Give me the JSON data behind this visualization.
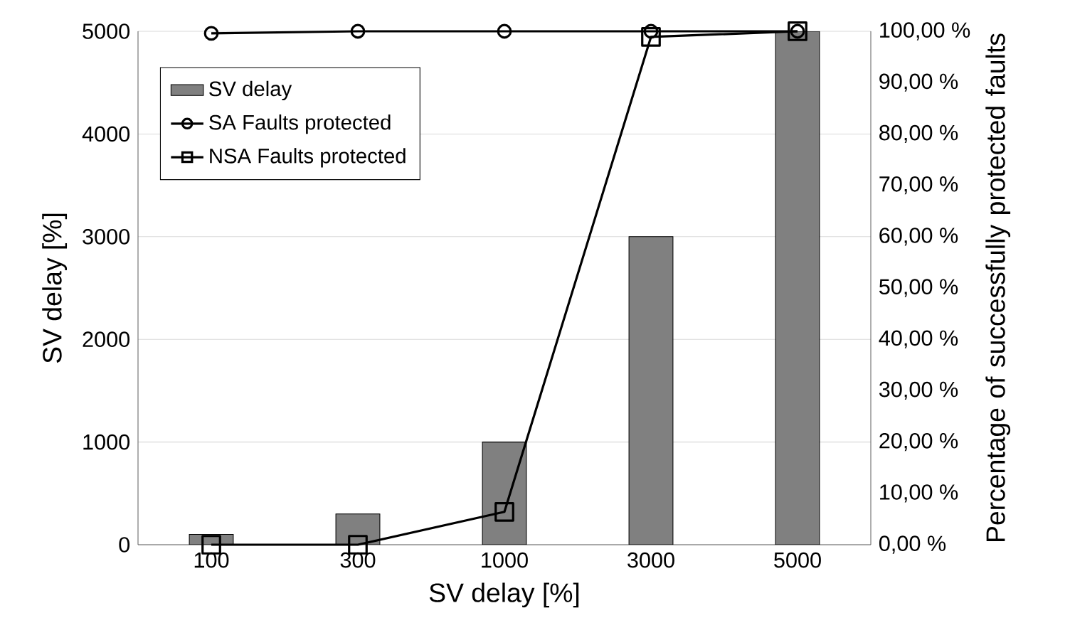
{
  "chart_data": {
    "type": "bar",
    "xlabel": "SV delay [%]",
    "ylabel": "SV delay [%]",
    "y2label": "Percentage of successfully protected faults",
    "categories": [
      "100",
      "300",
      "1000",
      "3000",
      "5000"
    ],
    "series": [
      {
        "name": "SV delay",
        "color": "#808080",
        "values": [
          100,
          300,
          1000,
          3000,
          5000
        ]
      },
      {
        "name": "SA Faults protected",
        "type": "line",
        "axis": "y2",
        "marker": "circle",
        "color": "#000000",
        "values": [
          99.6,
          100,
          100,
          100,
          100
        ]
      },
      {
        "name": "NSA Faults protected",
        "type": "line",
        "axis": "y2",
        "marker": "square",
        "color": "#000000",
        "values": [
          0,
          0,
          6.4,
          98.9,
          100
        ]
      }
    ],
    "ylim": [
      0,
      5000
    ],
    "yticks": [
      0,
      1000,
      2000,
      3000,
      4000,
      5000
    ],
    "y2lim": [
      0,
      100
    ],
    "y2ticks": [
      {
        "value": 0,
        "label": "0,00 %"
      },
      {
        "value": 10,
        "label": "10,00 %"
      },
      {
        "value": 20,
        "label": "20,00 %"
      },
      {
        "value": 30,
        "label": "30,00 %"
      },
      {
        "value": 40,
        "label": "40,00 %"
      },
      {
        "value": 50,
        "label": "50,00 %"
      },
      {
        "value": 60,
        "label": "60,00 %"
      },
      {
        "value": 70,
        "label": "70,00 %"
      },
      {
        "value": 80,
        "label": "80,00 %"
      },
      {
        "value": 90,
        "label": "90,00 %"
      },
      {
        "value": 100,
        "label": "100,00 %"
      }
    ],
    "grid": "y",
    "legend": "top left"
  }
}
